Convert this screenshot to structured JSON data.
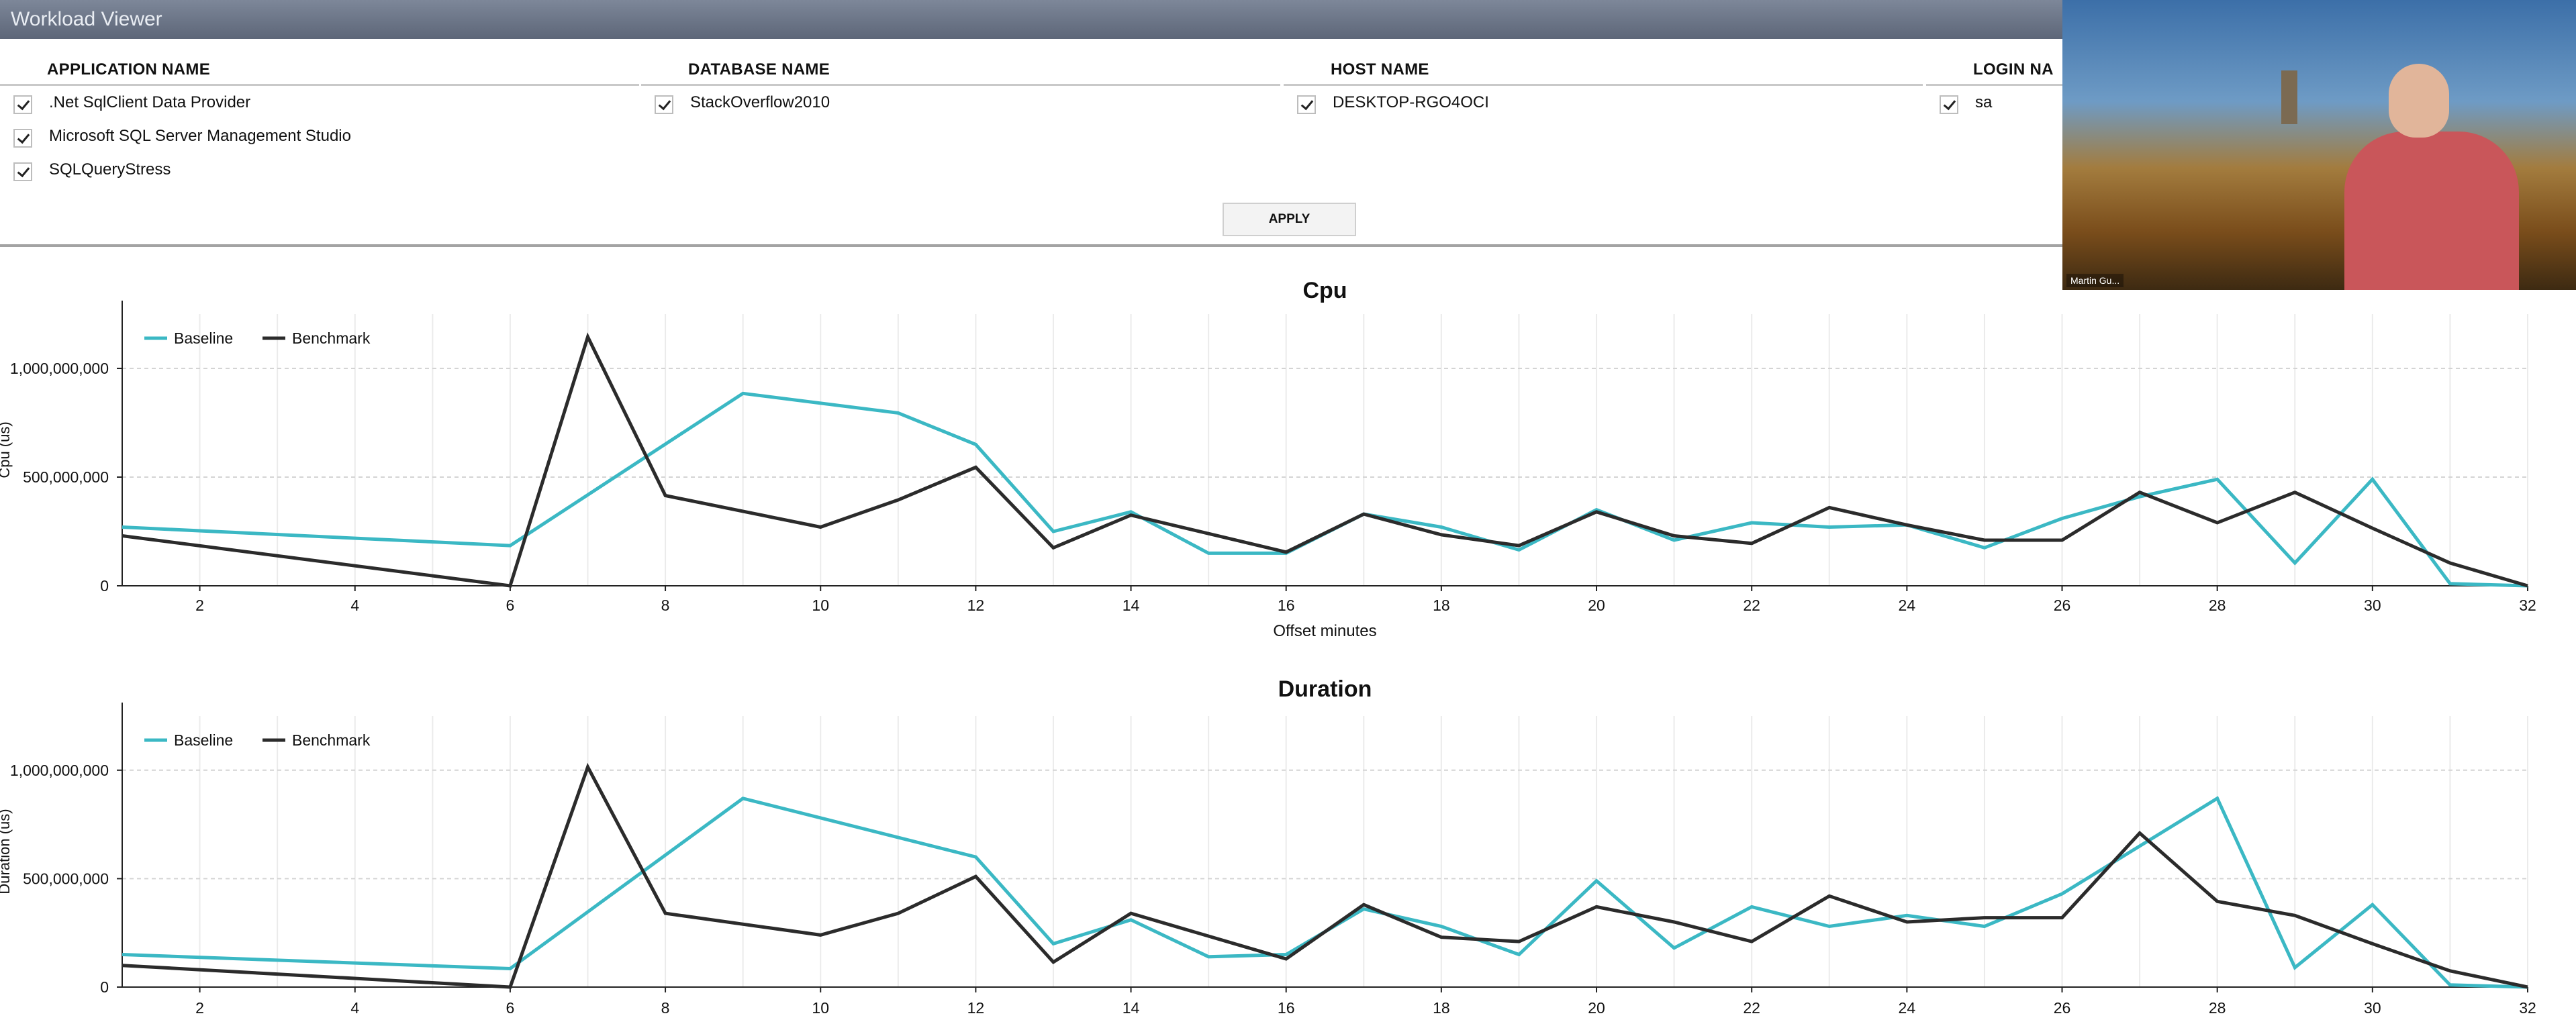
{
  "window": {
    "title": "Workload Viewer"
  },
  "filters": {
    "columns": [
      {
        "header": "APPLICATION NAME",
        "items": [
          ".Net SqlClient Data Provider",
          "Microsoft SQL Server Management Studio",
          "SQLQueryStress"
        ]
      },
      {
        "header": "DATABASE NAME",
        "items": [
          "StackOverflow2010"
        ]
      },
      {
        "header": "HOST NAME",
        "items": [
          "DESKTOP-RGO4OCI"
        ]
      },
      {
        "header": "LOGIN NA",
        "items": [
          "sa"
        ]
      }
    ],
    "apply_label": "APPLY"
  },
  "video": {
    "name_tag": "Martin Gu..."
  },
  "colors": {
    "baseline": "#3bb8c4",
    "benchmark": "#2b2b2b"
  },
  "chart_data": [
    {
      "type": "line",
      "title": "Cpu",
      "xlabel": "Offset minutes",
      "ylabel": "Cpu (us)",
      "xlim": [
        1,
        32
      ],
      "ylim": [
        0,
        1250000000
      ],
      "xticks": [
        2,
        4,
        6,
        8,
        10,
        12,
        14,
        16,
        18,
        20,
        22,
        24,
        26,
        28,
        30,
        32
      ],
      "yticks": [
        0,
        500000000,
        1000000000
      ],
      "ytick_labels": [
        "0",
        "500,000,000",
        "1,000,000,000"
      ],
      "legend": "top-left",
      "grid": true,
      "series": [
        {
          "name": "Baseline",
          "x": [
            1,
            6,
            9,
            11,
            12,
            13,
            14,
            15,
            16,
            17,
            18,
            19,
            20,
            21,
            22,
            23,
            24,
            25,
            26,
            27,
            28,
            29,
            30,
            31,
            32
          ],
          "values": [
            270000000,
            185000000,
            885000000,
            795000000,
            650000000,
            250000000,
            340000000,
            150000000,
            150000000,
            330000000,
            270000000,
            165000000,
            350000000,
            210000000,
            290000000,
            270000000,
            280000000,
            175000000,
            310000000,
            410000000,
            490000000,
            105000000,
            490000000,
            10000000,
            0
          ]
        },
        {
          "name": "Benchmark",
          "x": [
            1,
            6,
            7,
            8,
            10,
            11,
            12,
            13,
            14,
            16,
            17,
            18,
            19,
            20,
            21,
            22,
            23,
            24,
            25,
            26,
            27,
            28,
            29,
            30,
            31,
            32
          ],
          "values": [
            230000000,
            0,
            1145000000,
            415000000,
            270000000,
            395000000,
            545000000,
            175000000,
            325000000,
            155000000,
            330000000,
            235000000,
            185000000,
            340000000,
            230000000,
            195000000,
            360000000,
            280000000,
            210000000,
            210000000,
            430000000,
            290000000,
            430000000,
            265000000,
            105000000,
            0
          ]
        }
      ]
    },
    {
      "type": "line",
      "title": "Duration",
      "xlabel": "",
      "ylabel": "Duration (us)",
      "xlim": [
        1,
        32
      ],
      "ylim": [
        0,
        1250000000
      ],
      "xticks": [
        2,
        4,
        6,
        8,
        10,
        12,
        14,
        16,
        18,
        20,
        22,
        24,
        26,
        28,
        30,
        32
      ],
      "yticks": [
        0,
        500000000,
        1000000000
      ],
      "ytick_labels": [
        "0",
        "500,000,000",
        "1,000,000,000"
      ],
      "legend": "top-left",
      "grid": true,
      "series": [
        {
          "name": "Baseline",
          "x": [
            1,
            6,
            9,
            12,
            13,
            14,
            15,
            16,
            17,
            18,
            19,
            20,
            21,
            22,
            23,
            24,
            25,
            26,
            27,
            28,
            29,
            30,
            31,
            32
          ],
          "values": [
            150000000,
            85000000,
            870000000,
            600000000,
            200000000,
            310000000,
            140000000,
            150000000,
            360000000,
            280000000,
            150000000,
            490000000,
            180000000,
            370000000,
            280000000,
            330000000,
            280000000,
            430000000,
            650000000,
            870000000,
            90000000,
            380000000,
            10000000,
            0
          ]
        },
        {
          "name": "Benchmark",
          "x": [
            1,
            6,
            7,
            8,
            10,
            11,
            12,
            13,
            14,
            16,
            17,
            18,
            19,
            20,
            21,
            22,
            23,
            24,
            25,
            26,
            27,
            28,
            29,
            30,
            31,
            32
          ],
          "values": [
            100000000,
            0,
            1015000000,
            340000000,
            240000000,
            340000000,
            510000000,
            115000000,
            340000000,
            130000000,
            380000000,
            230000000,
            210000000,
            370000000,
            300000000,
            210000000,
            420000000,
            300000000,
            320000000,
            320000000,
            710000000,
            395000000,
            330000000,
            200000000,
            75000000,
            0
          ]
        }
      ]
    }
  ]
}
